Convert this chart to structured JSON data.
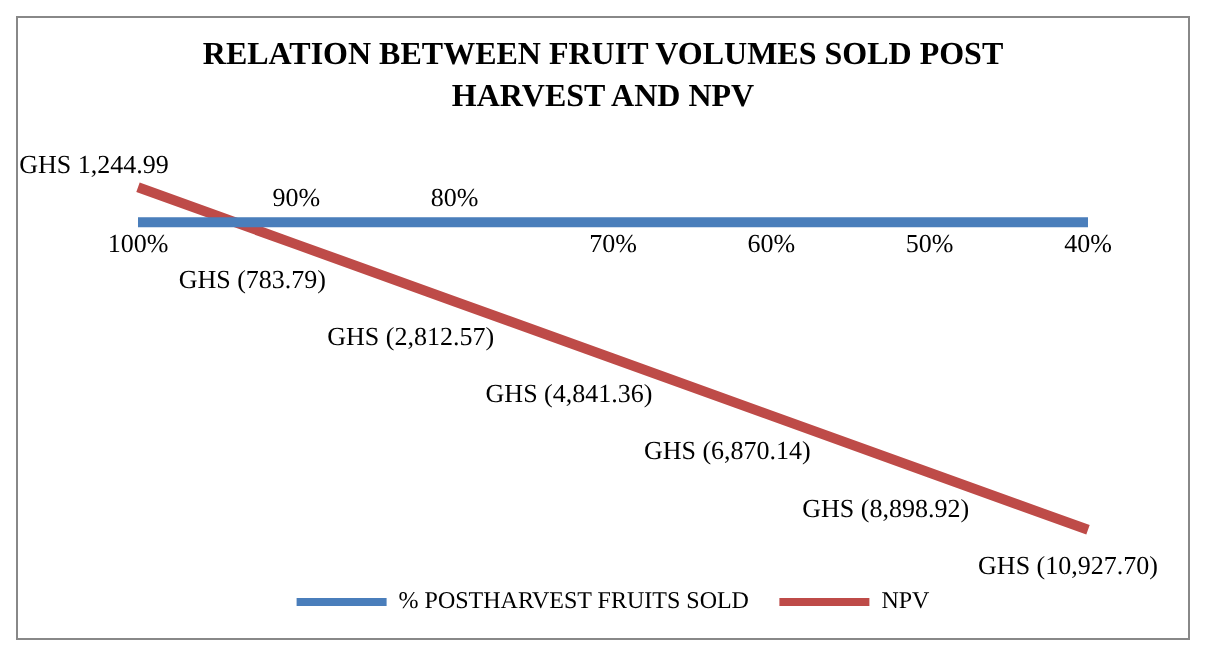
{
  "chart_data": {
    "type": "line",
    "title": "RELATION BETWEEN FRUIT VOLUMES SOLD POST HARVEST AND NPV",
    "categories": [
      "100%",
      "90%",
      "80%",
      "70%",
      "60%",
      "50%",
      "40%"
    ],
    "series": [
      {
        "name": "% POSTHARVEST FRUITS SOLD",
        "color": "#4a7ebb",
        "values": [
          1,
          0.9,
          0.8,
          0.7,
          0.6,
          0.5,
          0.4
        ]
      },
      {
        "name": "NPV",
        "color": "#be4b48",
        "values": [
          1244.99,
          -783.79,
          -2812.57,
          -4841.36,
          -6870.14,
          -8898.92,
          -10927.7
        ],
        "value_labels": [
          "GHS 1,244.99",
          "GHS (783.79)",
          "GHS (2,812.57)",
          "GHS (4,841.36)",
          "GHS (6,870.14)",
          "GHS (8,898.92)",
          "GHS (10,927.70)"
        ]
      }
    ],
    "grid": false,
    "legend": "bottom",
    "marker": "none",
    "line_style": "solid"
  }
}
